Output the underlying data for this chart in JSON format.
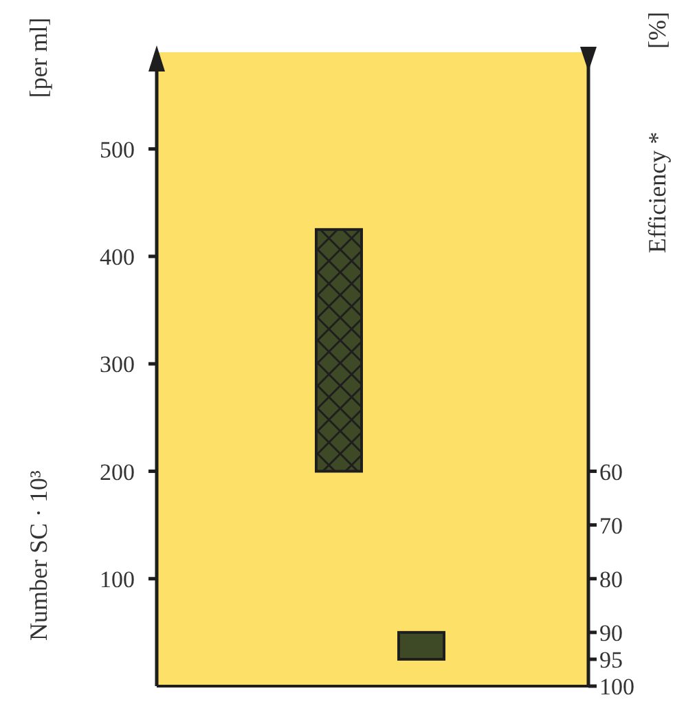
{
  "chart_data": {
    "type": "bar",
    "ylabel": "Number SC · 10³",
    "y2label": "Efficiency *",
    "annotations": [
      "[per ml]",
      "[%]"
    ],
    "categories": [
      null,
      null,
      null,
      null
    ],
    "series": [
      {
        "color": "#3e4a25",
        "base": [
          null,
          200,
          null,
          null
        ],
        "values": [
          null,
          225,
          null,
          null
        ]
      },
      {
        "color": "#3e4a25",
        "axis": "y2",
        "base": [
          null,
          null,
          95,
          null
        ],
        "values": [
          null,
          null,
          -5,
          null
        ]
      }
    ],
    "ylim": [
      0,
      590
    ],
    "yticks": [
      100,
      200,
      300,
      400,
      500
    ],
    "y2lim": [
      100,
      -18
    ],
    "y2ticks": [
      60,
      70,
      80,
      90,
      95,
      100
    ],
    "tick_labels": "y",
    "grid": false,
    "legend": false
  }
}
